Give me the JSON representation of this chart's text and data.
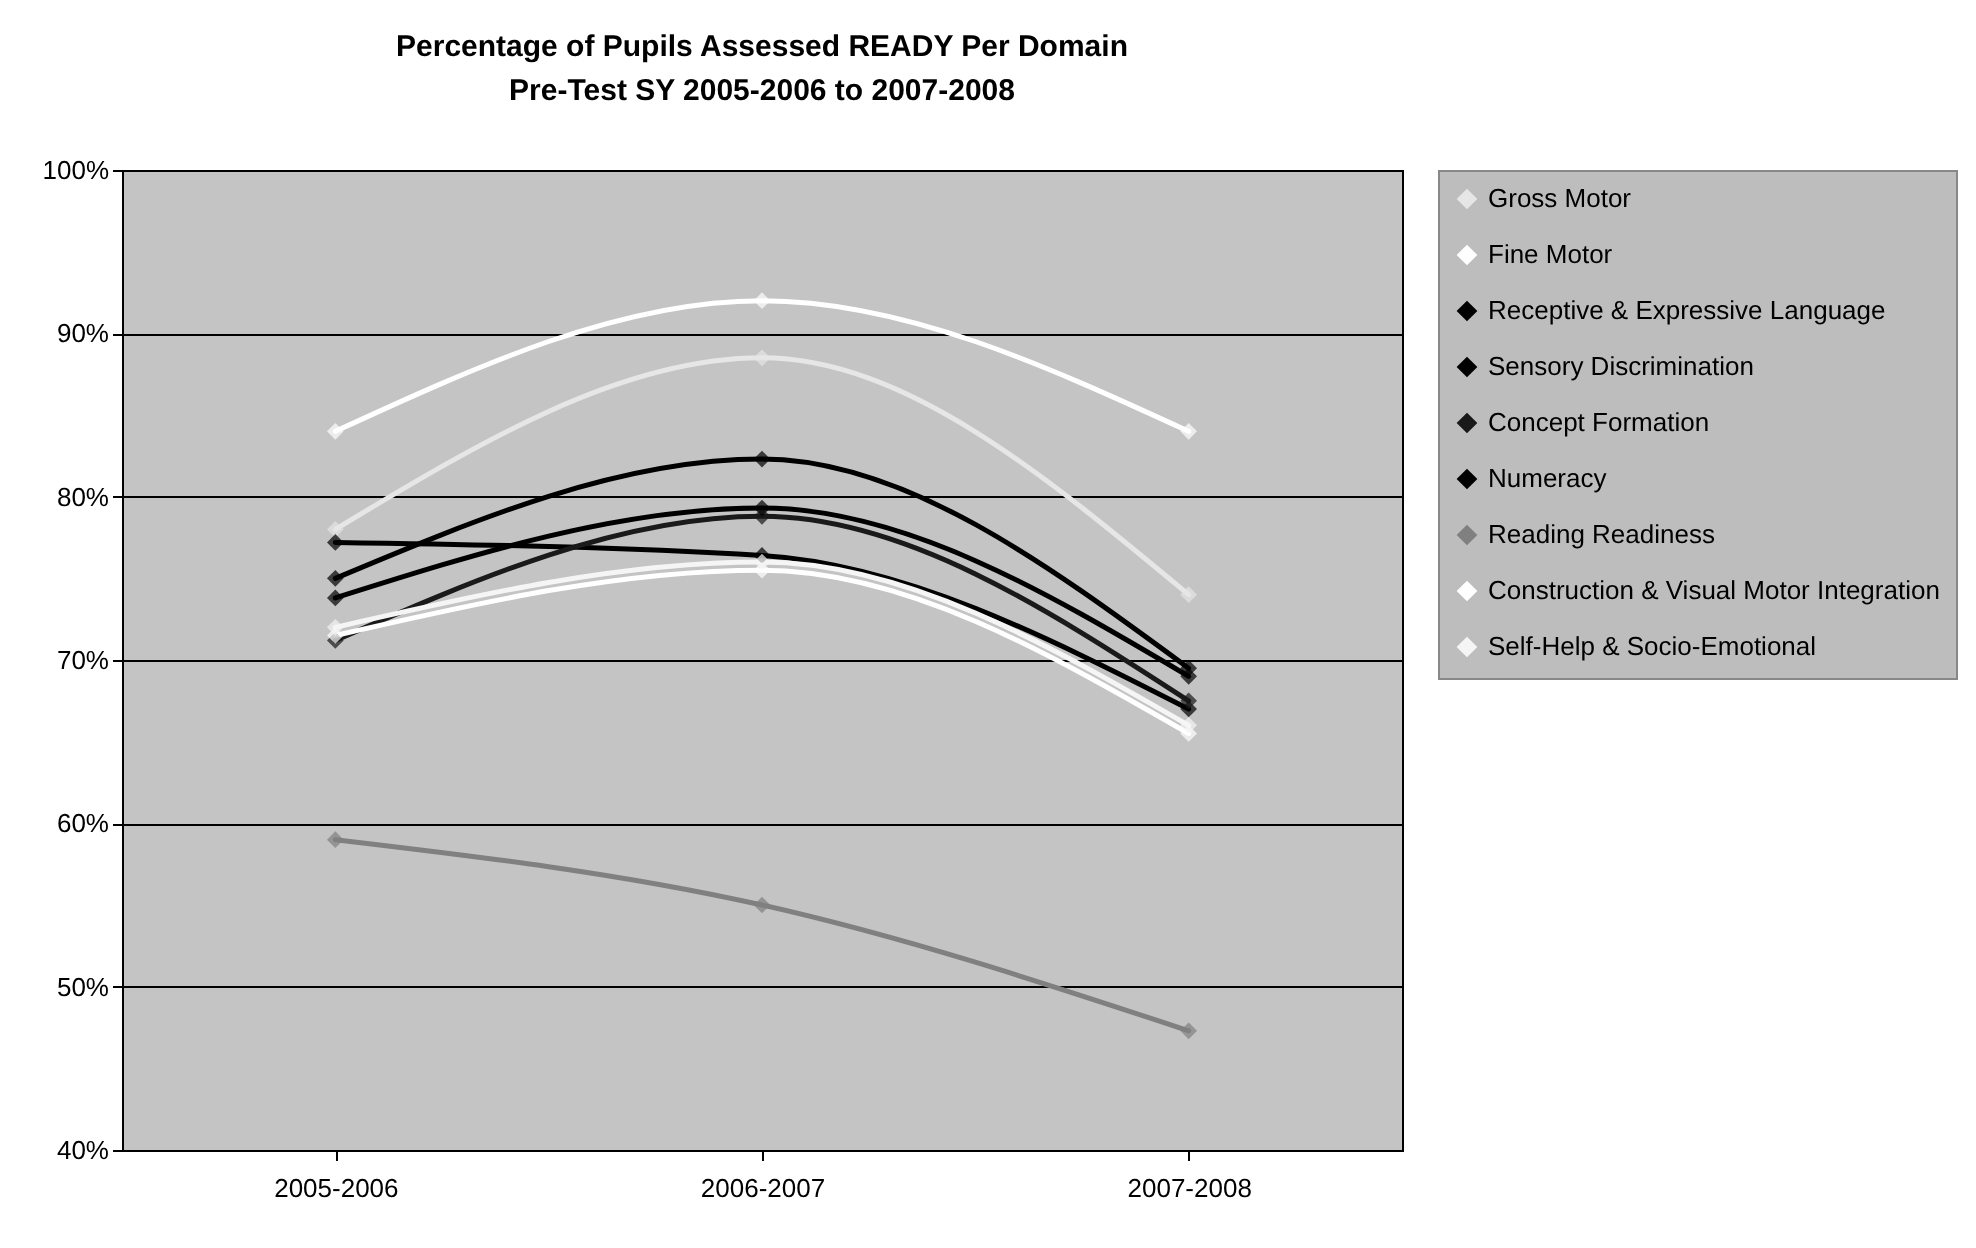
{
  "chart_data": {
    "type": "line",
    "title": [
      "Percentage of Pupils Assessed READY Per Domain",
      "Pre-Test SY 2005-2006 to 2007-2008"
    ],
    "categories": [
      "2005-2006",
      "2006-2007",
      "2007-2008"
    ],
    "series": [
      {
        "name": "Gross Motor",
        "color": "#e6e6e6",
        "values": [
          78,
          88.5,
          74
        ]
      },
      {
        "name": "Fine Motor",
        "color": "#ffffff",
        "values": [
          84,
          92,
          84
        ]
      },
      {
        "name": "Receptive & Expressive Language",
        "color": "#000000",
        "values": [
          77.2,
          76.4,
          67
        ]
      },
      {
        "name": "Sensory Discrimination",
        "color": "#000000",
        "values": [
          75,
          82.3,
          69.5
        ]
      },
      {
        "name": "Concept Formation",
        "color": "#1a1a1a",
        "values": [
          71.2,
          78.8,
          67.5
        ]
      },
      {
        "name": "Numeracy",
        "color": "#000000",
        "values": [
          73.8,
          79.3,
          69
        ]
      },
      {
        "name": "Reading Readiness",
        "color": "#808080",
        "values": [
          59,
          55,
          47.3
        ]
      },
      {
        "name": "Construction & Visual Motor Integration",
        "color": "#ffffff",
        "values": [
          71.5,
          75.5,
          65.5
        ]
      },
      {
        "name": "Self-Help & Socio-Emotional",
        "color": "#f5f5f5",
        "values": [
          72,
          76,
          66
        ]
      }
    ],
    "ylim": [
      40,
      100
    ],
    "yticks": [
      {
        "value": 40,
        "label": "40%"
      },
      {
        "value": 50,
        "label": "50%"
      },
      {
        "value": 60,
        "label": "60%"
      },
      {
        "value": 70,
        "label": "70%"
      },
      {
        "value": 80,
        "label": "80%"
      },
      {
        "value": 90,
        "label": "90%"
      },
      {
        "value": 100,
        "label": "100%"
      }
    ],
    "grid": "y",
    "legend": "right",
    "marker": "diamond",
    "line_style": "solid"
  }
}
